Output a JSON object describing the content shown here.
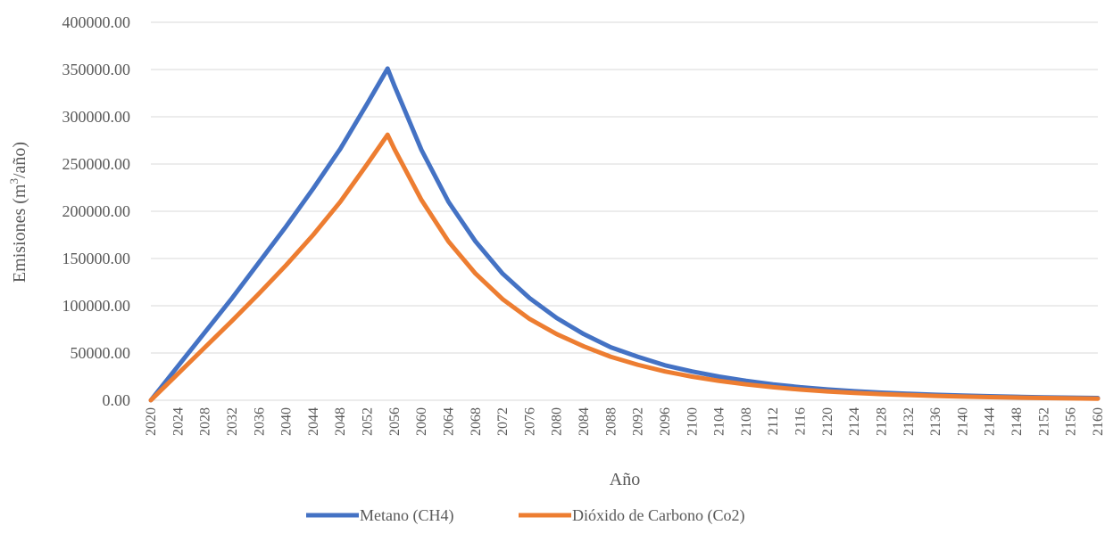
{
  "chart_data": {
    "type": "line",
    "title": "",
    "xlabel": "Año",
    "ylabel_main": "Emisiones (m",
    "ylabel_sup": "3",
    "ylabel_tail": "/año)",
    "ylim": [
      0,
      400000
    ],
    "yticks": [
      "0.00",
      "50000.00",
      "100000.00",
      "150000.00",
      "200000.00",
      "250000.00",
      "300000.00",
      "350000.00",
      "400000.00"
    ],
    "xlim": [
      2020,
      2160
    ],
    "xticks": [
      "2020",
      "2024",
      "2028",
      "2032",
      "2036",
      "2040",
      "2044",
      "2048",
      "2052",
      "2056",
      "2060",
      "2064",
      "2068",
      "2072",
      "2076",
      "2080",
      "2084",
      "2088",
      "2092",
      "2096",
      "2100",
      "2104",
      "2108",
      "2112",
      "2116",
      "2120",
      "2124",
      "2128",
      "2132",
      "2136",
      "2140",
      "2144",
      "2148",
      "2152",
      "2156",
      "2160"
    ],
    "grid": true,
    "legend_position": "bottom",
    "series": [
      {
        "name": "Metano (CH4)",
        "color": "#4472c4",
        "x": [
          2020,
          2024,
          2028,
          2032,
          2036,
          2040,
          2044,
          2048,
          2052,
          2055,
          2056,
          2060,
          2064,
          2068,
          2072,
          2076,
          2080,
          2084,
          2088,
          2092,
          2096,
          2100,
          2104,
          2108,
          2112,
          2116,
          2120,
          2124,
          2128,
          2132,
          2136,
          2140,
          2144,
          2148,
          2152,
          2156,
          2160
        ],
        "y": [
          0,
          36000,
          72000,
          108000,
          146000,
          184000,
          224000,
          266000,
          314000,
          351000,
          333000,
          265000,
          210000,
          168000,
          134000,
          108000,
          87000,
          70000,
          56000,
          46000,
          37000,
          30500,
          25000,
          20500,
          16800,
          13800,
          11500,
          9600,
          8000,
          6800,
          5800,
          4900,
          4200,
          3600,
          3100,
          2700,
          2300
        ]
      },
      {
        "name": "Dióxido de Carbono (Co2)",
        "color": "#ed7d31",
        "x": [
          2020,
          2024,
          2028,
          2032,
          2036,
          2040,
          2044,
          2048,
          2052,
          2055,
          2056,
          2060,
          2064,
          2068,
          2072,
          2076,
          2080,
          2084,
          2088,
          2092,
          2096,
          2100,
          2104,
          2108,
          2112,
          2116,
          2120,
          2124,
          2128,
          2132,
          2136,
          2140,
          2144,
          2148,
          2152,
          2156,
          2160
        ],
        "y": [
          0,
          28000,
          56000,
          84000,
          113000,
          143000,
          175000,
          210000,
          250000,
          281000,
          266000,
          212000,
          168000,
          134000,
          107000,
          86000,
          70000,
          57000,
          46000,
          37500,
          30500,
          25000,
          20500,
          16800,
          13800,
          11300,
          9300,
          7800,
          6500,
          5500,
          4600,
          3900,
          3300,
          2800,
          2400,
          2000,
          1700
        ]
      }
    ]
  }
}
